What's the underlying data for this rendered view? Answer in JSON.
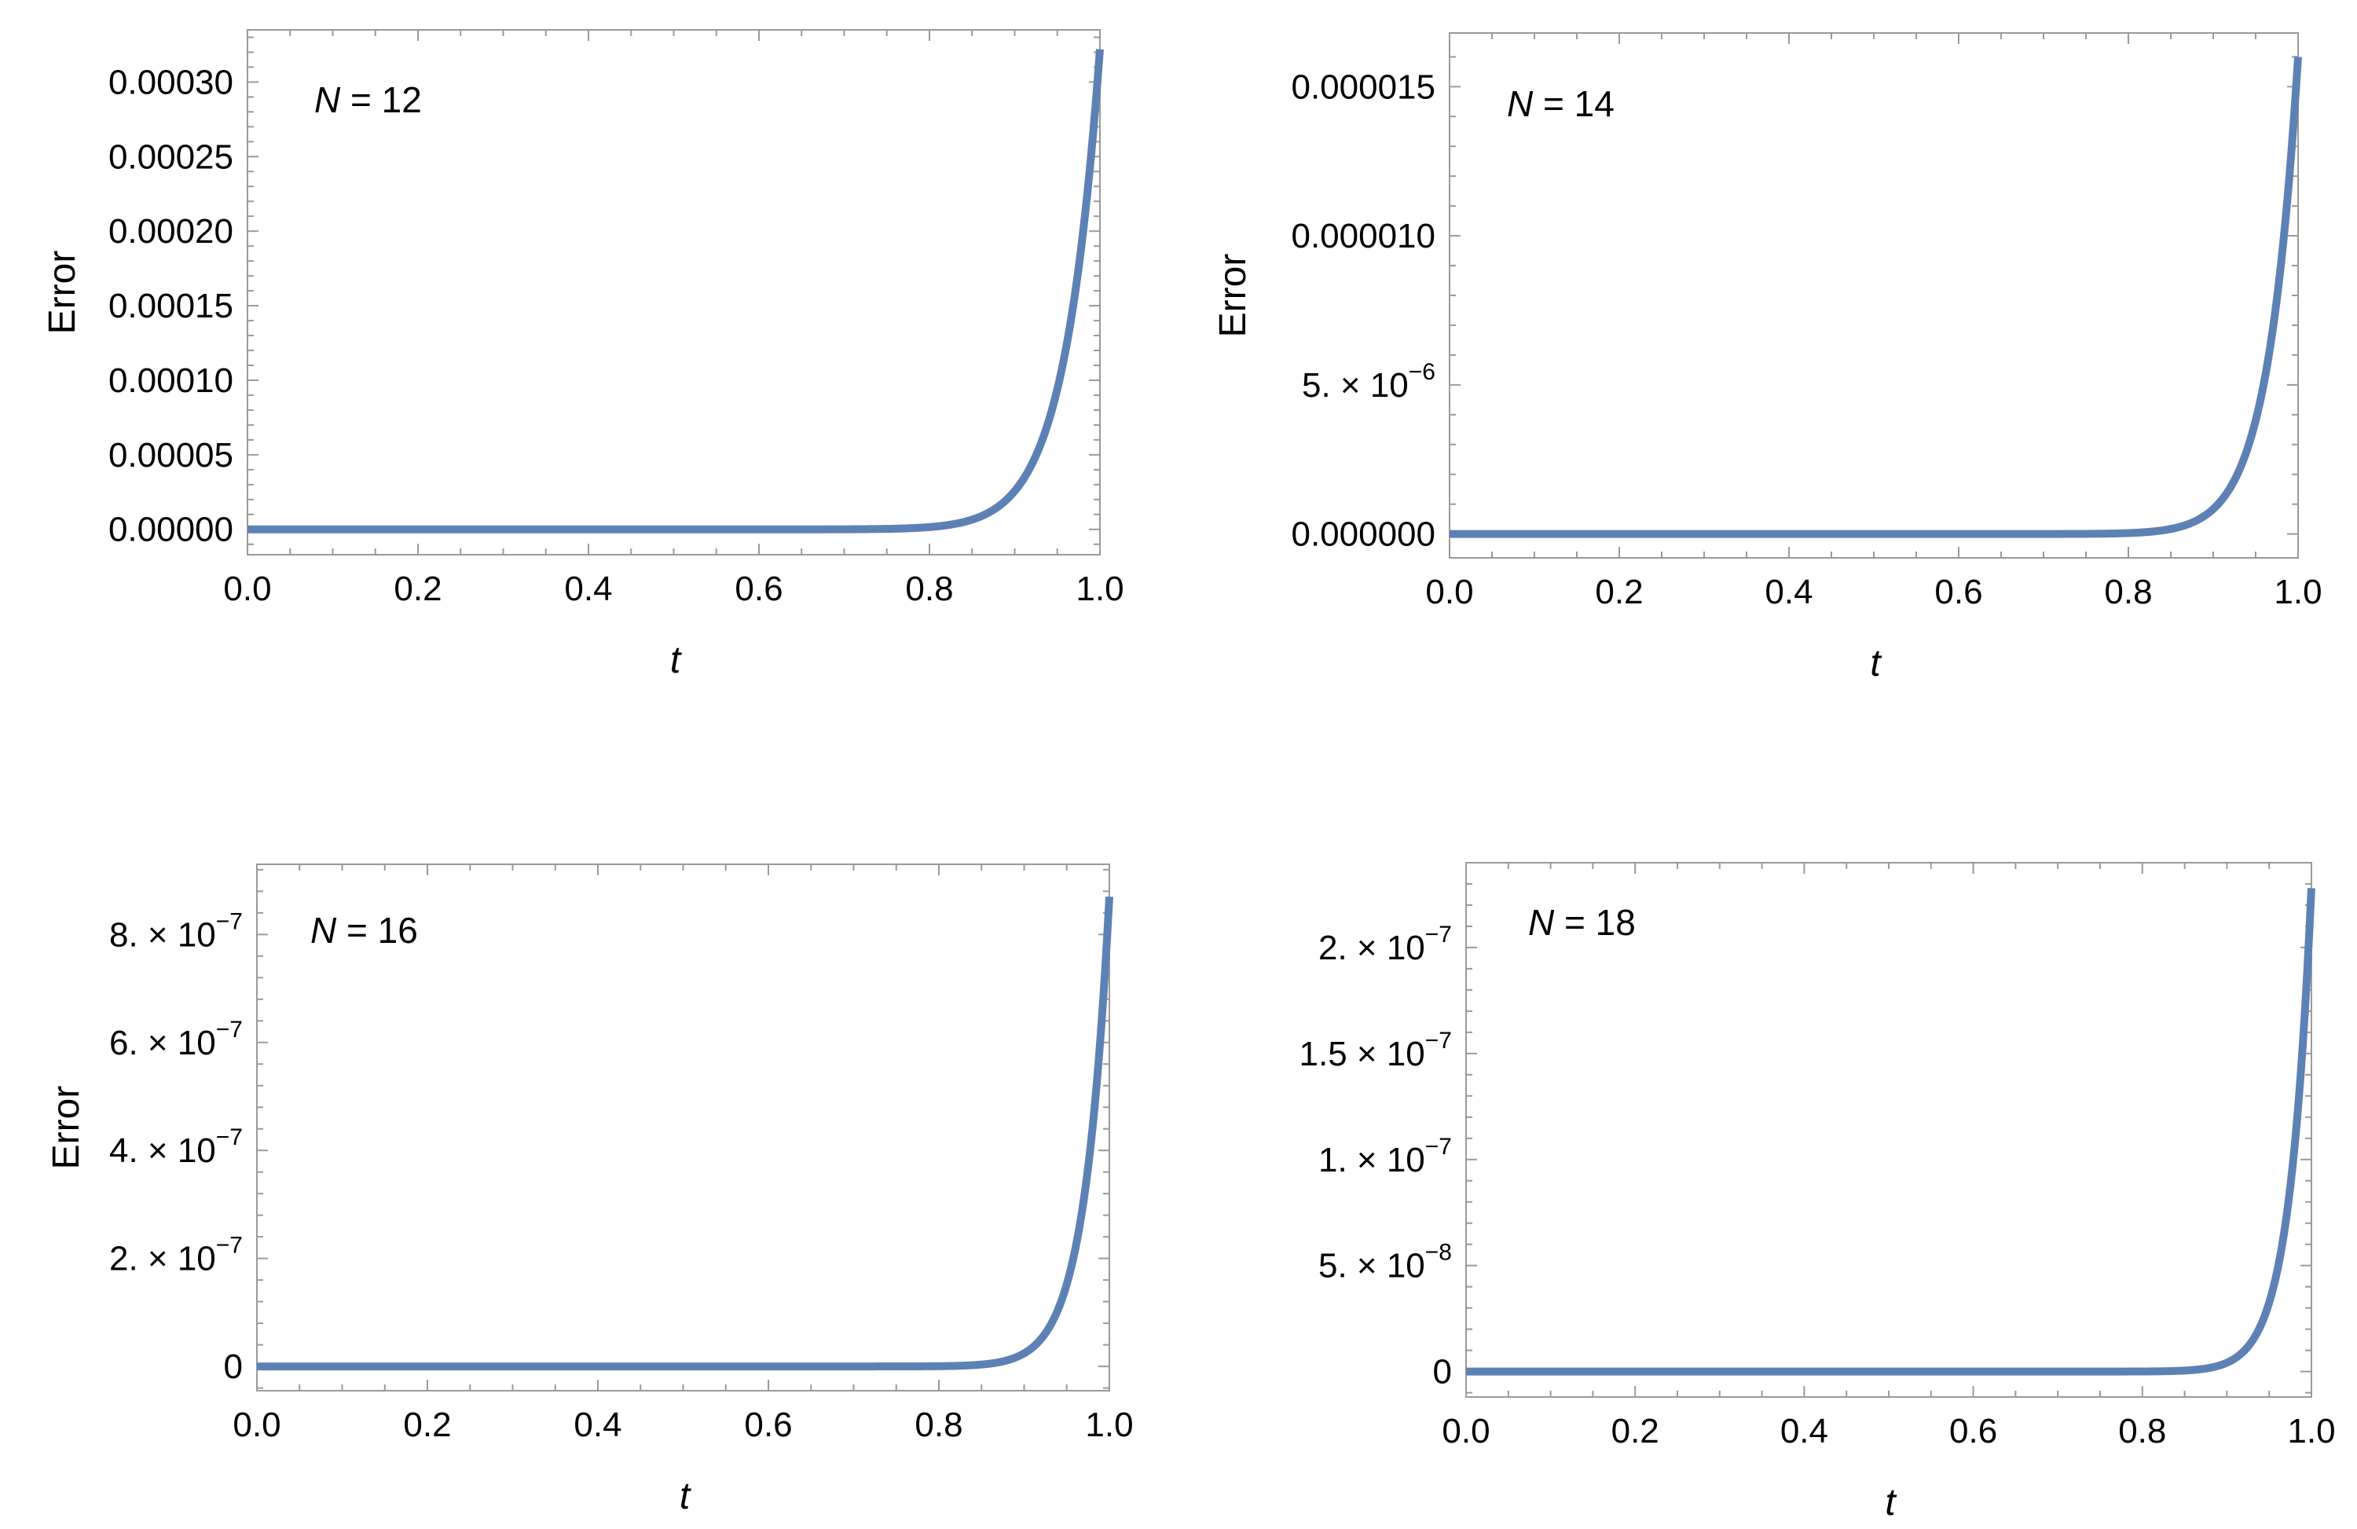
{
  "chart_data": [
    {
      "type": "line",
      "xlabel": "t",
      "ylabel": "Error",
      "xlim": [
        0,
        1
      ],
      "ylim": [
        -1.7e-05,
        0.000335
      ],
      "xticks": [
        "0.0",
        "0.2",
        "0.4",
        "0.6",
        "0.8",
        "1.0"
      ],
      "yticks": [
        {
          "value": 0,
          "mant": "0.00000",
          "exp": ""
        },
        {
          "value": 5e-05,
          "mant": "0.00005",
          "exp": ""
        },
        {
          "value": 0.0001,
          "mant": "0.00010",
          "exp": ""
        },
        {
          "value": 0.00015,
          "mant": "0.00015",
          "exp": ""
        },
        {
          "value": 0.0002,
          "mant": "0.00020",
          "exp": ""
        },
        {
          "value": 0.00025,
          "mant": "0.00025",
          "exp": ""
        },
        {
          "value": 0.0003,
          "mant": "0.00030",
          "exp": ""
        }
      ],
      "annotation": {
        "var": "N",
        "eq": " = 12"
      },
      "series": [
        {
          "color": "#5e81b5",
          "max_value": 0.000322,
          "exponent": 24
        }
      ]
    },
    {
      "type": "line",
      "xlabel": "t",
      "ylabel": "Error",
      "xlim": [
        0,
        1
      ],
      "ylim": [
        -8e-07,
        1.68e-05
      ],
      "xticks": [
        "0.0",
        "0.2",
        "0.4",
        "0.6",
        "0.8",
        "1.0"
      ],
      "yticks": [
        {
          "value": 0,
          "mant": "0.000000",
          "exp": ""
        },
        {
          "value": 5e-06,
          "mant": "5. × 10",
          "exp": "−6"
        },
        {
          "value": 1e-05,
          "mant": "0.000010",
          "exp": ""
        },
        {
          "value": 1.5e-05,
          "mant": "0.000015",
          "exp": ""
        }
      ],
      "annotation": {
        "var": "N",
        "eq": " = 14"
      },
      "series": [
        {
          "color": "#5e81b5",
          "max_value": 1.6e-05,
          "exponent": 28
        }
      ]
    },
    {
      "type": "line",
      "xlabel": "t",
      "ylabel": "Error",
      "xlim": [
        0,
        1
      ],
      "ylim": [
        -4.5e-08,
        9.3e-07
      ],
      "xticks": [
        "0.0",
        "0.2",
        "0.4",
        "0.6",
        "0.8",
        "1.0"
      ],
      "yticks": [
        {
          "value": 0,
          "mant": "0",
          "exp": ""
        },
        {
          "value": 2e-07,
          "mant": "2. × 10",
          "exp": "−7"
        },
        {
          "value": 4e-07,
          "mant": "4. × 10",
          "exp": "−7"
        },
        {
          "value": 6e-07,
          "mant": "6. × 10",
          "exp": "−7"
        },
        {
          "value": 8e-07,
          "mant": "8. × 10",
          "exp": "−7"
        }
      ],
      "annotation": {
        "var": "N",
        "eq": " = 16"
      },
      "series": [
        {
          "color": "#5e81b5",
          "max_value": 8.7e-07,
          "exponent": 34
        }
      ]
    },
    {
      "type": "line",
      "xlabel": "t",
      "ylabel": "",
      "xlim": [
        0,
        1
      ],
      "ylim": [
        -1.2e-08,
        2.4e-07
      ],
      "xticks": [
        "0.0",
        "0.2",
        "0.4",
        "0.6",
        "0.8",
        "1.0"
      ],
      "yticks": [
        {
          "value": 0,
          "mant": "0",
          "exp": ""
        },
        {
          "value": 5e-08,
          "mant": "5. × 10",
          "exp": "−8"
        },
        {
          "value": 1e-07,
          "mant": "1. × 10",
          "exp": "−7"
        },
        {
          "value": 1.5e-07,
          "mant": "1.5 × 10",
          "exp": "−7"
        },
        {
          "value": 2e-07,
          "mant": "2. × 10",
          "exp": "−7"
        }
      ],
      "annotation": {
        "var": "N",
        "eq": " = 18"
      },
      "series": [
        {
          "color": "#5e81b5",
          "max_value": 2.28e-07,
          "exponent": 38
        }
      ]
    }
  ]
}
